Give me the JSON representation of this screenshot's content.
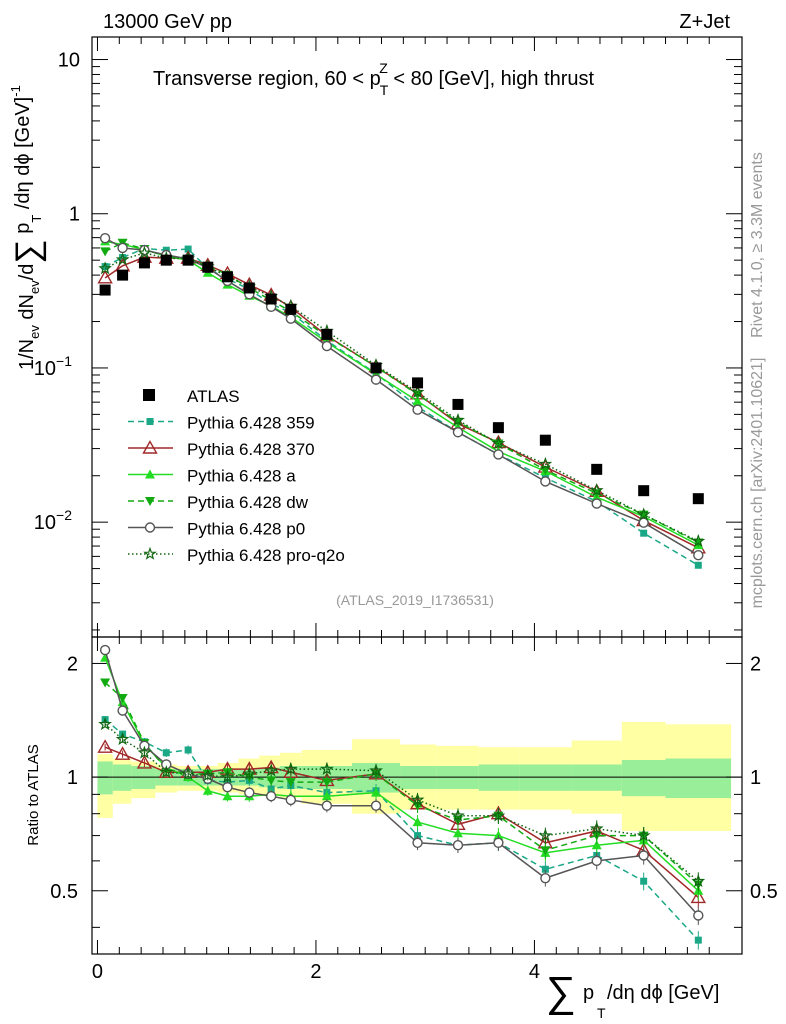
{
  "header": {
    "energy_label": "13000 GeV pp",
    "process_label": "Z+Jet",
    "title_prefix": "Transverse region, 60 < p",
    "title_sub": "T",
    "title_sup": "Z",
    "title_suffix": " < 80 [GeV], high thrust",
    "analysis_id": "(ATLAS_2019_I1736531)",
    "rivet_label": "Rivet 4.1.0, ≥ 3.3M events",
    "source_label": "mcplots.cern.ch [arXiv:2401.10621]"
  },
  "axes": {
    "main_ylabel_parts": [
      "1/N",
      "ev",
      " dN",
      "ev",
      "/d",
      "∑",
      " p",
      "T",
      " /dη dϕ  [GeV]",
      "-1"
    ],
    "ratio_ylabel": "Ratio to ATLAS",
    "xlabel_sum": "∑",
    "xlabel_p": "p",
    "xlabel_sub": "T",
    "xlabel_rest": "/dη dϕ [GeV]",
    "main_yticks": [
      {
        "value": 0.01,
        "base": "10",
        "exp": "−2"
      },
      {
        "value": 0.1,
        "base": "10",
        "exp": "−1"
      },
      {
        "value": 1,
        "base": "1",
        "exp": ""
      },
      {
        "value": 10,
        "base": "10",
        "exp": ""
      }
    ],
    "ratio_yticks": [
      "0.5",
      "1",
      "2"
    ],
    "xticks": [
      "0",
      "2",
      "4"
    ]
  },
  "chart_data": {
    "type": "line",
    "xlim": [
      -0.05,
      5.9
    ],
    "main_ylim": [
      0.0018,
      14
    ],
    "main_yscale": "log",
    "ratio_ylim": [
      0.34,
      2.35
    ],
    "ratio_yscale": "log",
    "x": [
      0.07,
      0.23,
      0.43,
      0.63,
      0.83,
      1.01,
      1.19,
      1.39,
      1.59,
      1.77,
      2.1,
      2.55,
      2.93,
      3.3,
      3.67,
      4.1,
      4.57,
      5.0,
      5.5
    ],
    "bin_edges": [
      0.0,
      0.14,
      0.31,
      0.53,
      0.73,
      0.92,
      1.1,
      1.29,
      1.48,
      1.67,
      1.87,
      2.33,
      2.77,
      3.1,
      3.49,
      3.86,
      4.34,
      4.8,
      5.2,
      5.8
    ],
    "atlas": {
      "name": "ATLAS",
      "values": [
        0.32,
        0.4,
        0.48,
        0.5,
        0.5,
        0.45,
        0.39,
        0.33,
        0.28,
        0.24,
        0.165,
        0.1,
        0.08,
        0.058,
        0.041,
        0.034,
        0.022,
        0.016,
        0.0142
      ],
      "stat_band": [
        0.1,
        0.08,
        0.07,
        0.05,
        0.05,
        0.05,
        0.05,
        0.05,
        0.06,
        0.07,
        0.07,
        0.09,
        0.07,
        0.07,
        0.08,
        0.08,
        0.08,
        0.11,
        0.12
      ],
      "total_band_lo": [
        0.22,
        0.15,
        0.12,
        0.09,
        0.08,
        0.08,
        0.09,
        0.1,
        0.11,
        0.12,
        0.15,
        0.2,
        0.18,
        0.18,
        0.18,
        0.18,
        0.2,
        0.28,
        0.28
      ],
      "total_band_hi": [
        0.15,
        0.12,
        0.1,
        0.08,
        0.07,
        0.07,
        0.09,
        0.12,
        0.14,
        0.16,
        0.18,
        0.26,
        0.22,
        0.21,
        0.2,
        0.2,
        0.25,
        0.4,
        0.38
      ]
    },
    "series": [
      {
        "name": "Pythia 6.428 359",
        "color": "#1aa886",
        "dash": "6,4",
        "marker": "square",
        "ratio": [
          1.42,
          1.3,
          1.24,
          1.16,
          1.18,
          0.98,
          0.97,
          0.98,
          0.93,
          0.95,
          0.91,
          0.92,
          0.7,
          0.66,
          0.67,
          0.57,
          0.62,
          0.53,
          0.37
        ]
      },
      {
        "name": "Pythia 6.428 370",
        "color": "#a12828",
        "dash": "",
        "marker": "triangle-open",
        "ratio": [
          1.2,
          1.15,
          1.09,
          1.03,
          1.03,
          1.03,
          1.05,
          1.05,
          1.06,
          1.03,
          0.98,
          1.02,
          0.85,
          0.75,
          0.8,
          0.67,
          0.72,
          0.64,
          0.48
        ]
      },
      {
        "name": "Pythia 6.428 a",
        "color": "#22dd22",
        "dash": "",
        "marker": "triangle",
        "ratio": [
          2.07,
          1.58,
          1.22,
          1.06,
          1.0,
          0.92,
          0.89,
          0.89,
          0.9,
          0.89,
          0.89,
          0.91,
          0.76,
          0.71,
          0.7,
          0.63,
          0.66,
          0.68,
          0.5
        ]
      },
      {
        "name": "Pythia 6.428 dw",
        "color": "#11aa11",
        "dash": "6,4",
        "marker": "triangle-down",
        "ratio": [
          1.78,
          1.62,
          1.23,
          1.05,
          1.02,
          1.02,
          1.03,
          1.0,
          0.98,
          0.97,
          0.97,
          1.02,
          0.84,
          0.77,
          0.79,
          0.64,
          0.7,
          0.7,
          0.52
        ]
      },
      {
        "name": "Pythia 6.428 p0",
        "color": "#555555",
        "dash": "",
        "marker": "circle-open",
        "ratio": [
          2.17,
          1.5,
          1.21,
          1.08,
          1.02,
          0.99,
          0.94,
          0.91,
          0.89,
          0.87,
          0.84,
          0.84,
          0.67,
          0.66,
          0.67,
          0.54,
          0.6,
          0.62,
          0.43
        ]
      },
      {
        "name": "Pythia 6.428 pro-q2o",
        "color": "#116611",
        "dash": "1.5,2.5",
        "marker": "star-open",
        "ratio": [
          1.38,
          1.26,
          1.16,
          1.03,
          1.02,
          1.01,
          1.0,
          1.02,
          1.04,
          1.05,
          1.05,
          1.04,
          0.87,
          0.79,
          0.79,
          0.7,
          0.73,
          0.7,
          0.53
        ]
      }
    ]
  }
}
